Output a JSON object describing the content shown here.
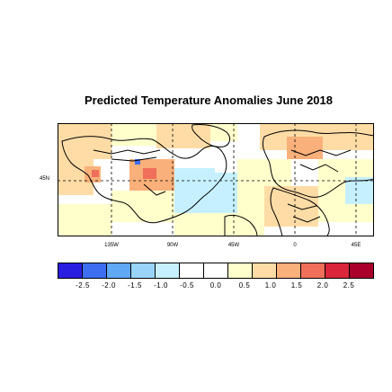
{
  "title": "Predicted Temperature Anomalies June 2018",
  "map": {
    "lat_labels": [
      "45N"
    ],
    "lon_labels": [
      "135W",
      "90W",
      "45W",
      "0",
      "45E"
    ]
  },
  "colorbar": {
    "colors": [
      "#2a1ee0",
      "#3d6ef0",
      "#5fa8f5",
      "#9ad4fb",
      "#c6f0ff",
      "#ffffff",
      "#ffffff",
      "#ffffcc",
      "#ffdca6",
      "#f9b07a",
      "#ef6f5a",
      "#d9263a",
      "#a8002a"
    ],
    "labels": [
      "-2.5",
      "-2.0",
      "-1.5",
      "-1.0",
      "-0.5",
      "0.0",
      "0.5",
      "1.0",
      "1.5",
      "2.0",
      "2.5"
    ]
  }
}
